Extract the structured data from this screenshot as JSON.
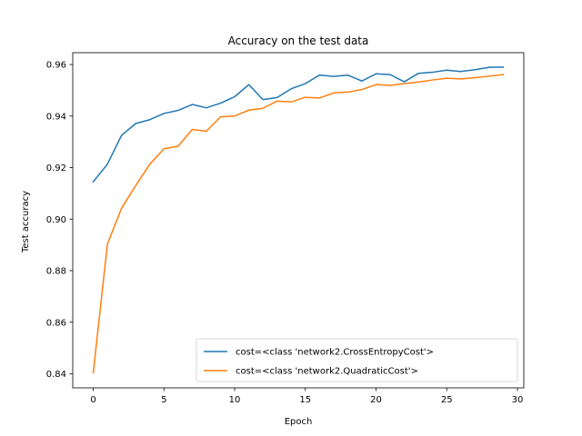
{
  "chart_data": {
    "type": "line",
    "title": "Accuracy on the test data",
    "xlabel": "Epoch",
    "ylabel": "Test accuracy",
    "xlim": [
      -1.45,
      30.45
    ],
    "ylim": [
      0.8345,
      0.9646
    ],
    "xticks": [
      0,
      5,
      10,
      15,
      20,
      25,
      30
    ],
    "xtick_labels": [
      "0",
      "5",
      "10",
      "15",
      "20",
      "25",
      "30"
    ],
    "yticks": [
      0.84,
      0.86,
      0.88,
      0.9,
      0.92,
      0.94,
      0.96
    ],
    "ytick_labels": [
      "0.84",
      "0.86",
      "0.88",
      "0.90",
      "0.92",
      "0.94",
      "0.96"
    ],
    "grid": false,
    "legend_position": "lower-right",
    "x": [
      0,
      1,
      2,
      3,
      4,
      5,
      6,
      7,
      8,
      9,
      10,
      11,
      12,
      13,
      14,
      15,
      16,
      17,
      18,
      19,
      20,
      21,
      22,
      23,
      24,
      25,
      26,
      27,
      28,
      29
    ],
    "series": [
      {
        "name": "cost=<class 'network2.CrossEntropyCost'>",
        "color": "#1f77b4",
        "values": [
          0.9145,
          0.9213,
          0.9325,
          0.9371,
          0.9386,
          0.941,
          0.9422,
          0.9445,
          0.9432,
          0.945,
          0.9475,
          0.9522,
          0.9464,
          0.9472,
          0.9506,
          0.9526,
          0.9559,
          0.9554,
          0.9559,
          0.9536,
          0.9564,
          0.9561,
          0.9533,
          0.9566,
          0.957,
          0.9578,
          0.9573,
          0.958,
          0.9589,
          0.959
        ]
      },
      {
        "name": "cost=<class 'network2.QuadraticCost'>",
        "color": "#ff7f0e",
        "values": [
          0.8403,
          0.8903,
          0.9042,
          0.913,
          0.9213,
          0.9273,
          0.9283,
          0.9348,
          0.9341,
          0.9397,
          0.94,
          0.9423,
          0.943,
          0.9458,
          0.9455,
          0.9473,
          0.947,
          0.949,
          0.9493,
          0.9503,
          0.9522,
          0.9519,
          0.9526,
          0.9532,
          0.954,
          0.9547,
          0.9544,
          0.9549,
          0.9555,
          0.9561
        ]
      }
    ]
  }
}
